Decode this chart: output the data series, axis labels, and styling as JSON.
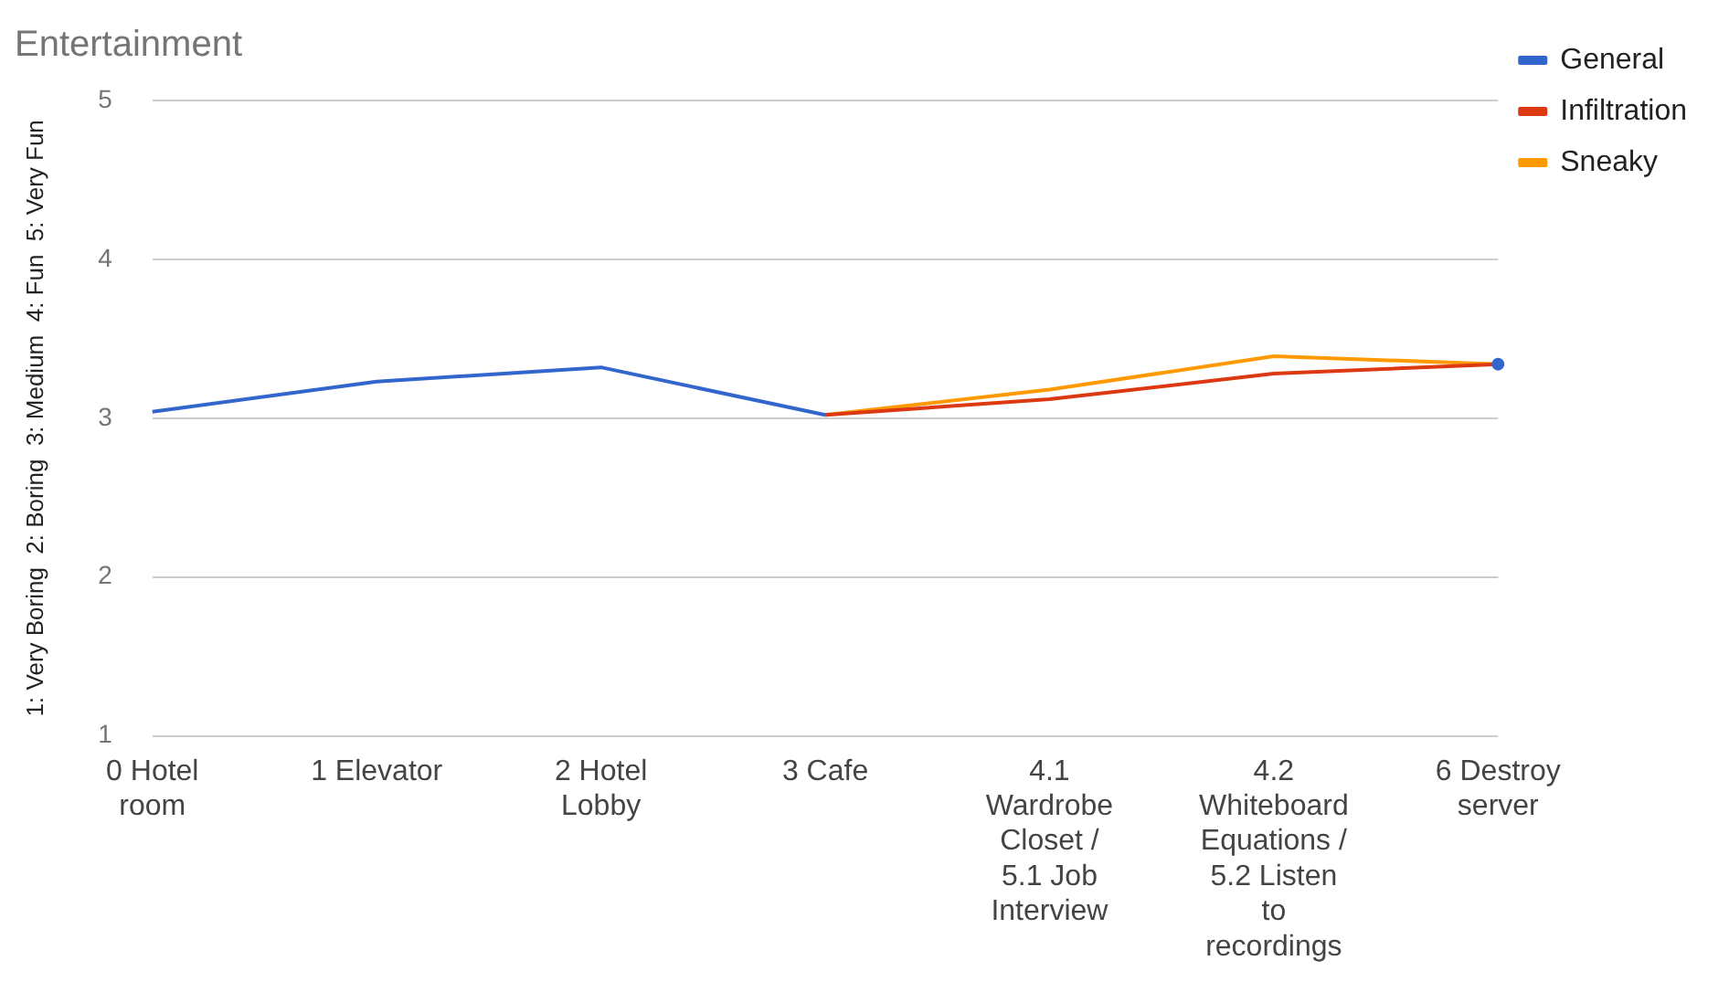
{
  "chart_data": {
    "type": "line",
    "title": "Entertainment",
    "ylabel": "1: Very Boring  2: Boring  3: Medium  4: Fun  5: Very Fun",
    "categories": [
      "0 Hotel room",
      "1 Elevator",
      "2 Hotel Lobby",
      "3 Cafe",
      "4.1 Wardrobe Closet / 5.1 Job Interview",
      "4.2 Whiteboard Equations / 5.2 Listen to recordings",
      "6 Destroy server"
    ],
    "series": [
      {
        "name": "General",
        "color": "#3366cc",
        "values": [
          3.04,
          3.23,
          3.32,
          3.02,
          null,
          null,
          3.34
        ]
      },
      {
        "name": "Infiltration",
        "color": "#dc3912",
        "values": [
          null,
          null,
          null,
          3.02,
          3.12,
          3.28,
          3.34
        ]
      },
      {
        "name": "Sneaky",
        "color": "#ff9900",
        "values": [
          null,
          null,
          null,
          3.02,
          3.18,
          3.39,
          3.34
        ]
      }
    ],
    "ylim": [
      1,
      5
    ],
    "yticks": [
      1,
      2,
      3,
      4,
      5
    ],
    "grid": "y",
    "legend": "top right",
    "marker": "none",
    "line_style": "solid"
  }
}
